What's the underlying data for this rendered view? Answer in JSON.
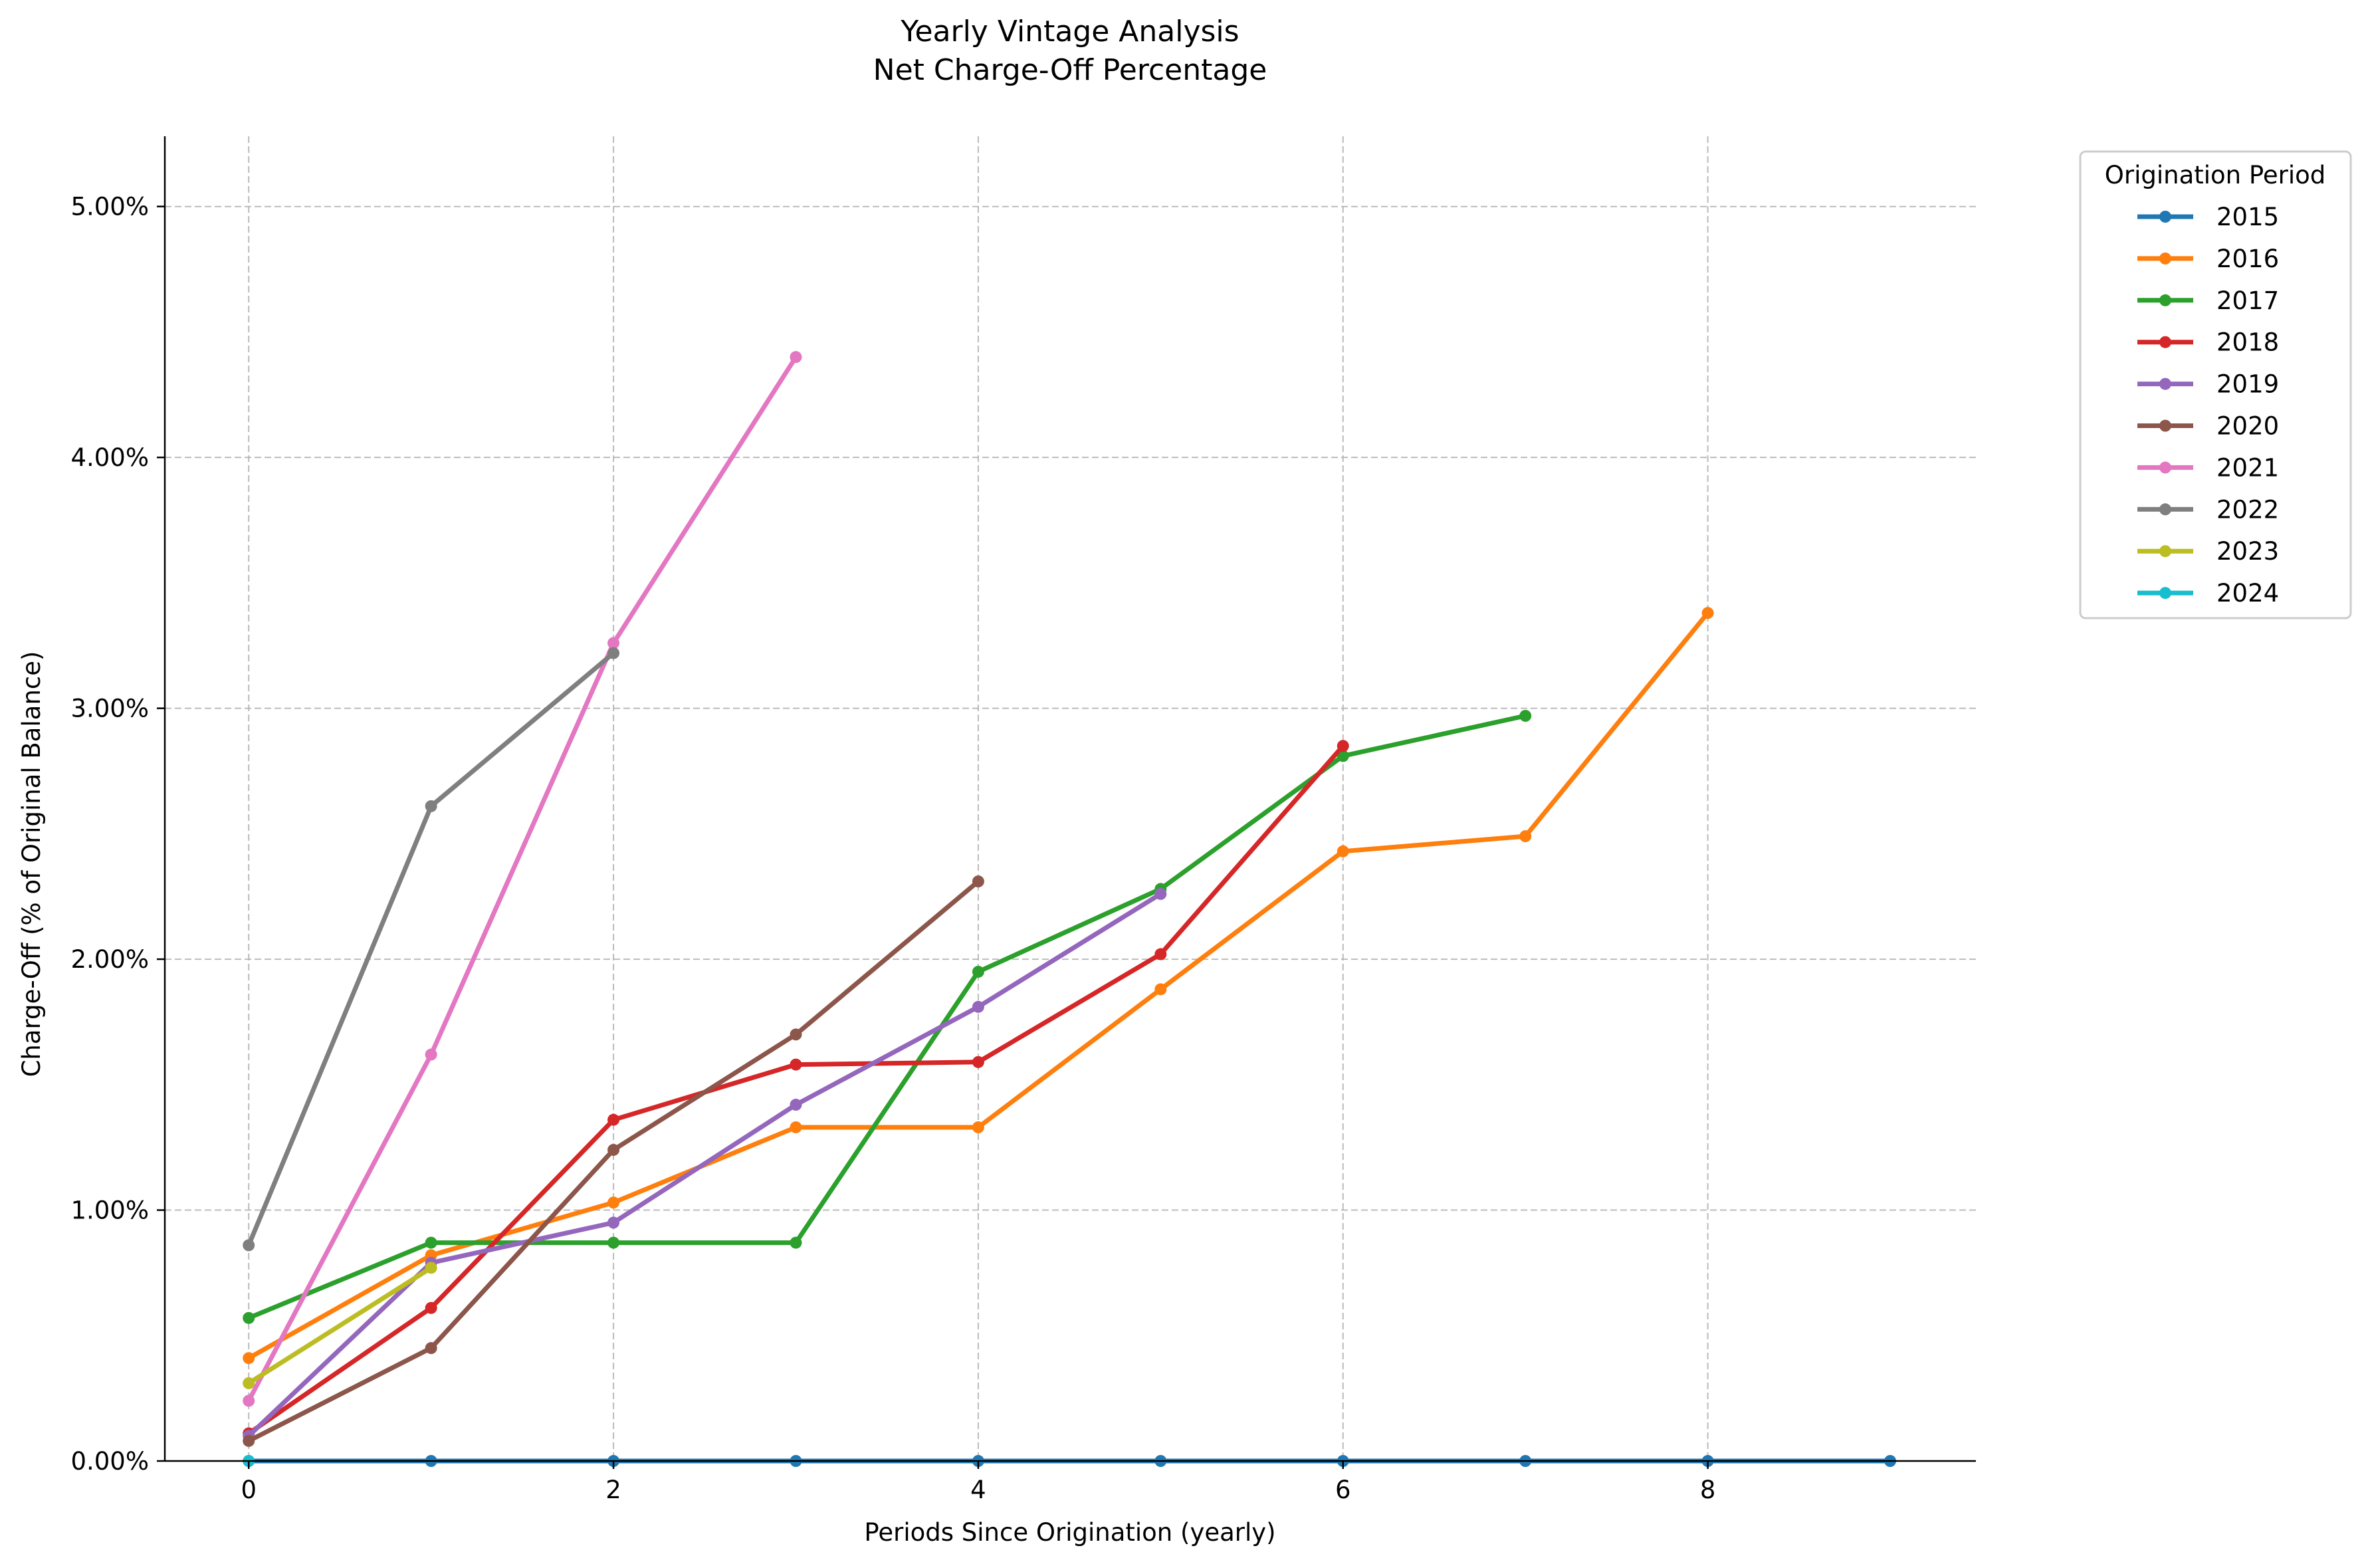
{
  "chart_data": {
    "type": "line",
    "title": "Yearly Vintage Analysis",
    "subtitle": "Net Charge-Off Percentage",
    "xlabel": "Periods Since Origination (yearly)",
    "ylabel": "Charge-Off (% of Original Balance)",
    "xlim": [
      -0.46,
      9.47
    ],
    "ylim": [
      0,
      5.28
    ],
    "xticks": [
      0,
      2,
      4,
      6,
      8
    ],
    "xtick_labels": [
      "0",
      "2",
      "4",
      "6",
      "8"
    ],
    "yticks": [
      0,
      1,
      2,
      3,
      4,
      5
    ],
    "ytick_labels": [
      "0.00%",
      "1.00%",
      "2.00%",
      "3.00%",
      "4.00%",
      "5.00%"
    ],
    "grid": true,
    "legend": {
      "title": "Origination Period",
      "placement": "outside-top-right"
    },
    "series": [
      {
        "name": "2015",
        "color": "#1f77b4",
        "x": [
          0,
          1,
          2,
          3,
          4,
          5,
          6,
          7,
          8,
          9
        ],
        "values": [
          0,
          0,
          0,
          0,
          0,
          0,
          0,
          0,
          0,
          0
        ]
      },
      {
        "name": "2016",
        "color": "#ff7f0e",
        "x": [
          0,
          1,
          2,
          3,
          4,
          5,
          6,
          7,
          8
        ],
        "values": [
          0.41,
          0.82,
          1.03,
          1.33,
          1.33,
          1.88,
          2.43,
          2.49,
          3.38
        ]
      },
      {
        "name": "2017",
        "color": "#2ca02c",
        "x": [
          0,
          1,
          2,
          3,
          4,
          5,
          6,
          7
        ],
        "values": [
          0.57,
          0.87,
          0.87,
          0.87,
          1.95,
          2.28,
          2.81,
          2.97
        ]
      },
      {
        "name": "2018",
        "color": "#d62728",
        "x": [
          0,
          1,
          2,
          3,
          4,
          5,
          6
        ],
        "values": [
          0.11,
          0.61,
          1.36,
          1.58,
          1.59,
          2.02,
          2.85
        ]
      },
      {
        "name": "2019",
        "color": "#9467bd",
        "x": [
          0,
          1,
          2,
          3,
          4,
          5
        ],
        "values": [
          0.1,
          0.79,
          0.95,
          1.42,
          1.81,
          2.26
        ]
      },
      {
        "name": "2020",
        "color": "#8c564b",
        "x": [
          0,
          1,
          2,
          3,
          4
        ],
        "values": [
          0.08,
          0.45,
          1.24,
          1.7,
          2.31
        ]
      },
      {
        "name": "2021",
        "color": "#e377c2",
        "x": [
          0,
          1,
          2,
          3
        ],
        "values": [
          0.24,
          1.62,
          3.26,
          4.4
        ]
      },
      {
        "name": "2022",
        "color": "#7f7f7f",
        "x": [
          0,
          1,
          2
        ],
        "values": [
          0.86,
          2.61,
          3.22
        ]
      },
      {
        "name": "2023",
        "color": "#bcbd22",
        "x": [
          0,
          1
        ],
        "values": [
          0.31,
          0.77
        ]
      },
      {
        "name": "2024",
        "color": "#17becf",
        "x": [
          0
        ],
        "values": [
          0
        ]
      }
    ]
  }
}
